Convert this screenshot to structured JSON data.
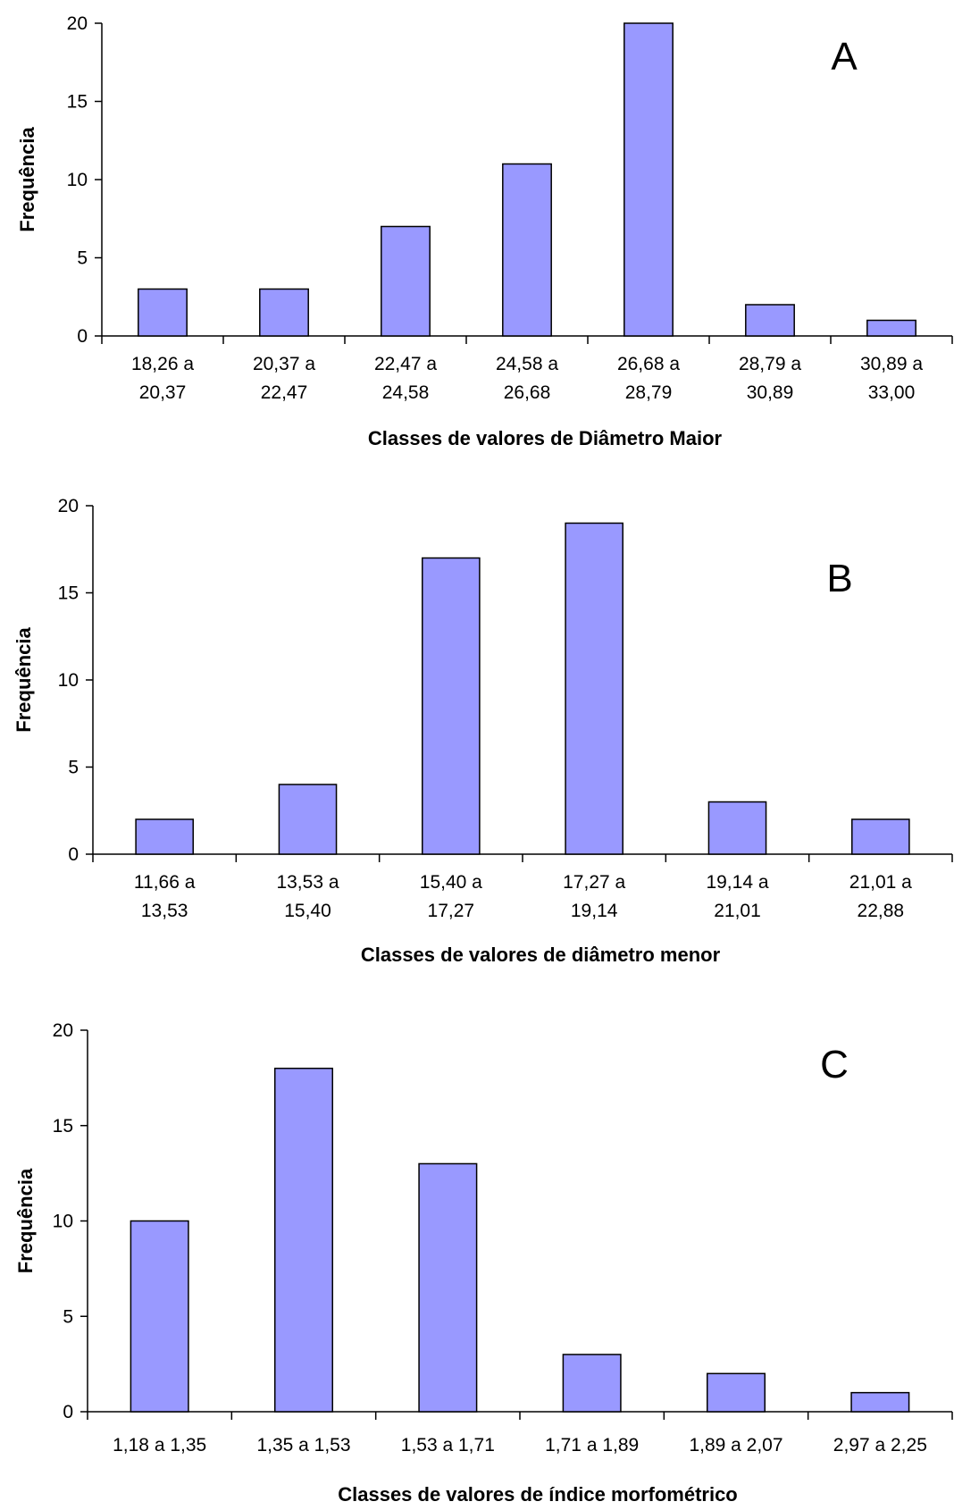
{
  "chart_data": [
    {
      "type": "bar",
      "panel": "A",
      "categories": [
        [
          "18,26 a",
          "20,37"
        ],
        [
          "20,37 a",
          "22,47"
        ],
        [
          "22,47 a",
          "24,58"
        ],
        [
          "24,58 a",
          "26,68"
        ],
        [
          "26,68 a",
          "28,79"
        ],
        [
          "28,79 a",
          "30,89"
        ],
        [
          "30,89 a",
          "33,00"
        ]
      ],
      "values": [
        3,
        3,
        7,
        11,
        20,
        2,
        1
      ],
      "xlabel": "Classes de valores de Diâmetro Maior",
      "ylabel": "Frequência",
      "ylim": [
        0,
        20
      ],
      "yticks": [
        0,
        5,
        10,
        15,
        20
      ],
      "grid": false,
      "bar_color": "#9999ff"
    },
    {
      "type": "bar",
      "panel": "B",
      "categories": [
        [
          "11,66 a",
          "13,53"
        ],
        [
          "13,53 a",
          "15,40"
        ],
        [
          "15,40 a",
          "17,27"
        ],
        [
          "17,27 a",
          "19,14"
        ],
        [
          "19,14 a",
          "21,01"
        ],
        [
          "21,01 a",
          "22,88"
        ]
      ],
      "values": [
        2,
        4,
        17,
        19,
        3,
        2
      ],
      "xlabel": "Classes de valores de diâmetro menor",
      "ylabel": "Frequência",
      "ylim": [
        0,
        20
      ],
      "yticks": [
        0,
        5,
        10,
        15,
        20
      ],
      "grid": false,
      "bar_color": "#9999ff"
    },
    {
      "type": "bar",
      "panel": "C",
      "categories": [
        [
          "1,18 a 1,35"
        ],
        [
          "1,35 a 1,53"
        ],
        [
          "1,53 a 1,71"
        ],
        [
          "1,71 a 1,89"
        ],
        [
          "1,89 a 2,07"
        ],
        [
          "2,97 a 2,25"
        ]
      ],
      "values": [
        10,
        18,
        13,
        3,
        2,
        1
      ],
      "xlabel": "Classes de valores de índice morfométrico",
      "ylabel": "Frequência",
      "ylim": [
        0,
        20
      ],
      "yticks": [
        0,
        5,
        10,
        15,
        20
      ],
      "grid": false,
      "bar_color": "#9999ff"
    }
  ]
}
